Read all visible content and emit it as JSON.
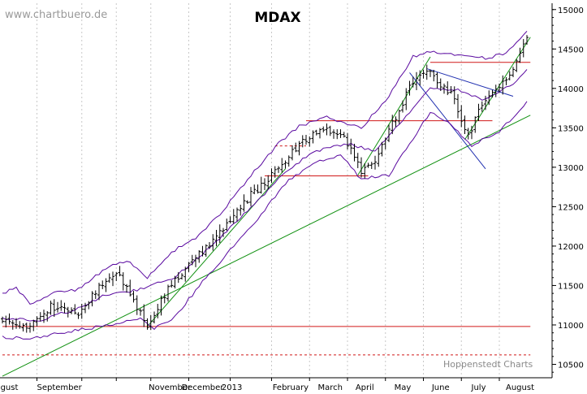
{
  "chart_data": {
    "type": "ohlc",
    "title": "MDAX",
    "watermark": "www.chartbuero.de",
    "credit": "Hoppenstedt Charts",
    "ylim": [
      10330,
      15080
    ],
    "y_ticks": [
      10500,
      11000,
      11500,
      12000,
      12500,
      13000,
      13500,
      14000,
      14500,
      15000
    ],
    "month_labels": [
      "gust",
      "September",
      "November",
      "December",
      "2013",
      "February",
      "March",
      "April",
      "May",
      "June",
      "July",
      "August"
    ],
    "grid": "vertical dotted lines at month boundaries",
    "colors": {
      "bars": "#000000",
      "bollinger": "#5a0aa0",
      "uptrend": "#109010",
      "levels": "#d01818",
      "downtrend": "#2030b0",
      "grid": "#c8c8c8"
    },
    "anchors": [
      {
        "i": 0,
        "v": 11080
      },
      {
        "i": 8,
        "v": 10980
      },
      {
        "i": 14,
        "v": 11240
      },
      {
        "i": 22,
        "v": 11120
      },
      {
        "i": 28,
        "v": 11500
      },
      {
        "i": 33,
        "v": 11680
      },
      {
        "i": 38,
        "v": 11300
      },
      {
        "i": 42,
        "v": 10980
      },
      {
        "i": 48,
        "v": 11450
      },
      {
        "i": 56,
        "v": 11850
      },
      {
        "i": 64,
        "v": 12200
      },
      {
        "i": 72,
        "v": 12650
      },
      {
        "i": 76,
        "v": 12800
      },
      {
        "i": 82,
        "v": 13100
      },
      {
        "i": 86,
        "v": 13300
      },
      {
        "i": 93,
        "v": 13480
      },
      {
        "i": 98,
        "v": 13450
      },
      {
        "i": 102,
        "v": 13150
      },
      {
        "i": 104,
        "v": 12960
      },
      {
        "i": 108,
        "v": 13100
      },
      {
        "i": 112,
        "v": 13450
      },
      {
        "i": 118,
        "v": 14000
      },
      {
        "i": 123,
        "v": 14250
      },
      {
        "i": 128,
        "v": 14000
      },
      {
        "i": 131,
        "v": 13900
      },
      {
        "i": 133,
        "v": 13550
      },
      {
        "i": 135,
        "v": 13400
      },
      {
        "i": 138,
        "v": 13700
      },
      {
        "i": 141,
        "v": 13880
      },
      {
        "i": 144,
        "v": 14000
      },
      {
        "i": 147,
        "v": 14200
      },
      {
        "i": 150,
        "v": 14450
      },
      {
        "i": 152,
        "v": 14650
      }
    ],
    "bar_count": 153,
    "bollinger": {
      "upper": [
        {
          "i": 0,
          "v": 11400
        },
        {
          "i": 4,
          "v": 11480
        },
        {
          "i": 8,
          "v": 11250
        },
        {
          "i": 14,
          "v": 11400
        },
        {
          "i": 22,
          "v": 11450
        },
        {
          "i": 30,
          "v": 11720
        },
        {
          "i": 36,
          "v": 11820
        },
        {
          "i": 42,
          "v": 11600
        },
        {
          "i": 50,
          "v": 11950
        },
        {
          "i": 56,
          "v": 12100
        },
        {
          "i": 64,
          "v": 12450
        },
        {
          "i": 72,
          "v": 12900
        },
        {
          "i": 80,
          "v": 13300
        },
        {
          "i": 86,
          "v": 13520
        },
        {
          "i": 94,
          "v": 13630
        },
        {
          "i": 104,
          "v": 13500
        },
        {
          "i": 112,
          "v": 13900
        },
        {
          "i": 119,
          "v": 14400
        },
        {
          "i": 124,
          "v": 14470
        },
        {
          "i": 132,
          "v": 14420
        },
        {
          "i": 140,
          "v": 14380
        },
        {
          "i": 146,
          "v": 14450
        },
        {
          "i": 152,
          "v": 14720
        }
      ],
      "middle": [
        {
          "i": 0,
          "v": 11080
        },
        {
          "i": 10,
          "v": 11050
        },
        {
          "i": 20,
          "v": 11180
        },
        {
          "i": 30,
          "v": 11380
        },
        {
          "i": 40,
          "v": 11450
        },
        {
          "i": 50,
          "v": 11600
        },
        {
          "i": 60,
          "v": 11980
        },
        {
          "i": 70,
          "v": 12400
        },
        {
          "i": 80,
          "v": 12850
        },
        {
          "i": 90,
          "v": 13200
        },
        {
          "i": 100,
          "v": 13300
        },
        {
          "i": 108,
          "v": 13200
        },
        {
          "i": 116,
          "v": 13600
        },
        {
          "i": 124,
          "v": 14000
        },
        {
          "i": 132,
          "v": 13980
        },
        {
          "i": 140,
          "v": 13850
        },
        {
          "i": 148,
          "v": 14050
        },
        {
          "i": 152,
          "v": 14250
        }
      ],
      "lower": [
        {
          "i": 0,
          "v": 10850
        },
        {
          "i": 8,
          "v": 10820
        },
        {
          "i": 16,
          "v": 10900
        },
        {
          "i": 24,
          "v": 10950
        },
        {
          "i": 32,
          "v": 11000
        },
        {
          "i": 40,
          "v": 11080
        },
        {
          "i": 44,
          "v": 10960
        },
        {
          "i": 50,
          "v": 11100
        },
        {
          "i": 58,
          "v": 11550
        },
        {
          "i": 66,
          "v": 11950
        },
        {
          "i": 74,
          "v": 12350
        },
        {
          "i": 82,
          "v": 12800
        },
        {
          "i": 90,
          "v": 13050
        },
        {
          "i": 98,
          "v": 13150
        },
        {
          "i": 104,
          "v": 12850
        },
        {
          "i": 112,
          "v": 12900
        },
        {
          "i": 118,
          "v": 13300
        },
        {
          "i": 124,
          "v": 13700
        },
        {
          "i": 130,
          "v": 13550
        },
        {
          "i": 136,
          "v": 13280
        },
        {
          "i": 144,
          "v": 13450
        },
        {
          "i": 152,
          "v": 13820
        }
      ]
    },
    "levels": [
      {
        "value": 10980,
        "style": "solid",
        "from_i": 0,
        "to_i": 153
      },
      {
        "value": 10620,
        "style": "dashed",
        "from_i": 0,
        "to_i": 153
      },
      {
        "value": 12890,
        "style": "solid",
        "from_i": 76,
        "to_i": 106
      },
      {
        "value": 13270,
        "style": "dashed",
        "from_i": 79,
        "to_i": 88
      },
      {
        "value": 13590,
        "style": "solid",
        "from_i": 88,
        "to_i": 142
      },
      {
        "value": 14330,
        "style": "solid",
        "from_i": 124,
        "to_i": 153
      }
    ],
    "trendlines": [
      {
        "color": "uptrend",
        "from": {
          "i": 0,
          "v": 10350
        },
        "to": {
          "i": 153,
          "v": 13660
        }
      },
      {
        "color": "uptrend",
        "from": {
          "i": 42,
          "v": 10980
        },
        "to": {
          "i": 82,
          "v": 12980
        }
      },
      {
        "color": "uptrend",
        "from": {
          "i": 103,
          "v": 12900
        },
        "to": {
          "i": 124,
          "v": 14400
        }
      },
      {
        "color": "uptrend",
        "from": {
          "i": 134,
          "v": 13350
        },
        "to": {
          "i": 153,
          "v": 14650
        }
      },
      {
        "color": "downtrend",
        "from": {
          "i": 123,
          "v": 14250
        },
        "to": {
          "i": 148,
          "v": 13900
        }
      },
      {
        "color": "downtrend",
        "from": {
          "i": 118,
          "v": 14200
        },
        "to": {
          "i": 140,
          "v": 12980
        }
      }
    ]
  }
}
